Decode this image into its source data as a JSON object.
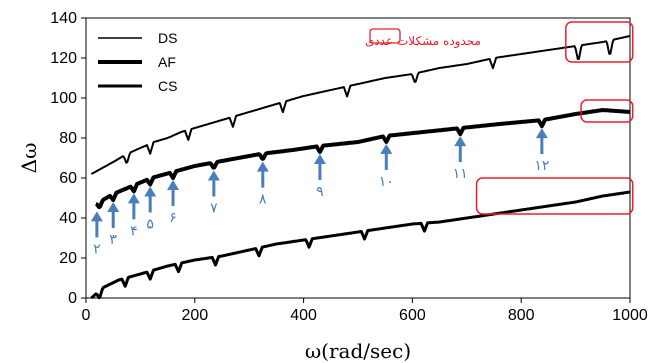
{
  "chart_data": {
    "type": "line",
    "xlabel": "ω(rad/sec)",
    "ylabel": "Δω",
    "xlim": [
      0,
      1000
    ],
    "ylim": [
      0,
      140
    ],
    "xticks": [
      0,
      200,
      400,
      600,
      800,
      1000
    ],
    "yticks": [
      0,
      20,
      40,
      60,
      80,
      100,
      120,
      140
    ],
    "grid": false,
    "legend_position": "top-left",
    "colors": {
      "series": "#000000",
      "annotation_box": "#e8202a",
      "arrow": "#4a7ebb"
    },
    "annotation_text": "محدوده مشکلات عددی",
    "series": [
      {
        "name": "DS",
        "line_width": 2,
        "x": [
          10,
          30,
          50,
          75,
          100,
          125,
          150,
          175,
          200,
          250,
          300,
          350,
          400,
          450,
          500,
          550,
          600,
          650,
          700,
          750,
          800,
          850,
          900,
          950,
          1000
        ],
        "values": [
          62,
          65,
          68,
          72,
          75,
          78,
          80,
          83,
          85,
          89,
          93,
          97,
          101,
          104,
          107,
          110,
          112,
          115,
          117,
          120,
          122,
          124,
          126,
          128,
          131
        ],
        "dips": [
          [
            75,
            5
          ],
          [
            118,
            5
          ],
          [
            188,
            5
          ],
          [
            270,
            5
          ],
          [
            362,
            5
          ],
          [
            480,
            5
          ],
          [
            605,
            5
          ],
          [
            748,
            5
          ],
          [
            905,
            8
          ],
          [
            963,
            8
          ]
        ]
      },
      {
        "name": "AF",
        "line_width": 4,
        "x": [
          18,
          50,
          85,
          120,
          160,
          200,
          240,
          280,
          320,
          380,
          430,
          500,
          550,
          620,
          690,
          760,
          840,
          900,
          950,
          1000
        ],
        "values": [
          47,
          52,
          56,
          60,
          63,
          66,
          68,
          70,
          72,
          74,
          76,
          78,
          81,
          83,
          85,
          87,
          89,
          92,
          94,
          93
        ],
        "dips": [
          [
            25,
            3
          ],
          [
            50,
            3
          ],
          [
            88,
            3
          ],
          [
            118,
            3
          ],
          [
            160,
            3
          ],
          [
            235,
            3
          ],
          [
            325,
            3
          ],
          [
            430,
            3
          ],
          [
            552,
            3
          ],
          [
            688,
            3
          ],
          [
            838,
            3
          ]
        ]
      },
      {
        "name": "CS",
        "line_width": 3,
        "x": [
          10,
          30,
          60,
          100,
          150,
          200,
          250,
          300,
          350,
          400,
          450,
          500,
          550,
          600,
          650,
          700,
          750,
          800,
          850,
          900,
          950,
          1000
        ],
        "values": [
          0,
          5,
          9,
          12,
          16,
          19,
          21,
          24,
          27,
          29,
          31,
          33,
          35,
          37,
          38,
          40,
          42,
          44,
          46,
          48,
          51,
          53
        ],
        "dips": [
          [
            25,
            4
          ],
          [
            72,
            4
          ],
          [
            118,
            4
          ],
          [
            170,
            4
          ],
          [
            238,
            4
          ],
          [
            318,
            4
          ],
          [
            410,
            4
          ],
          [
            512,
            4
          ],
          [
            622,
            4
          ]
        ]
      }
    ],
    "arrows": [
      {
        "x": 20,
        "label": "٢"
      },
      {
        "x": 50,
        "label": "٣"
      },
      {
        "x": 88,
        "label": "۴"
      },
      {
        "x": 118,
        "label": "۵"
      },
      {
        "x": 160,
        "label": "۶"
      },
      {
        "x": 235,
        "label": "٧"
      },
      {
        "x": 325,
        "label": "٨"
      },
      {
        "x": 430,
        "label": "٩"
      },
      {
        "x": 552,
        "label": "١٠"
      },
      {
        "x": 688,
        "label": "١١"
      },
      {
        "x": 838,
        "label": "١٢"
      }
    ]
  }
}
